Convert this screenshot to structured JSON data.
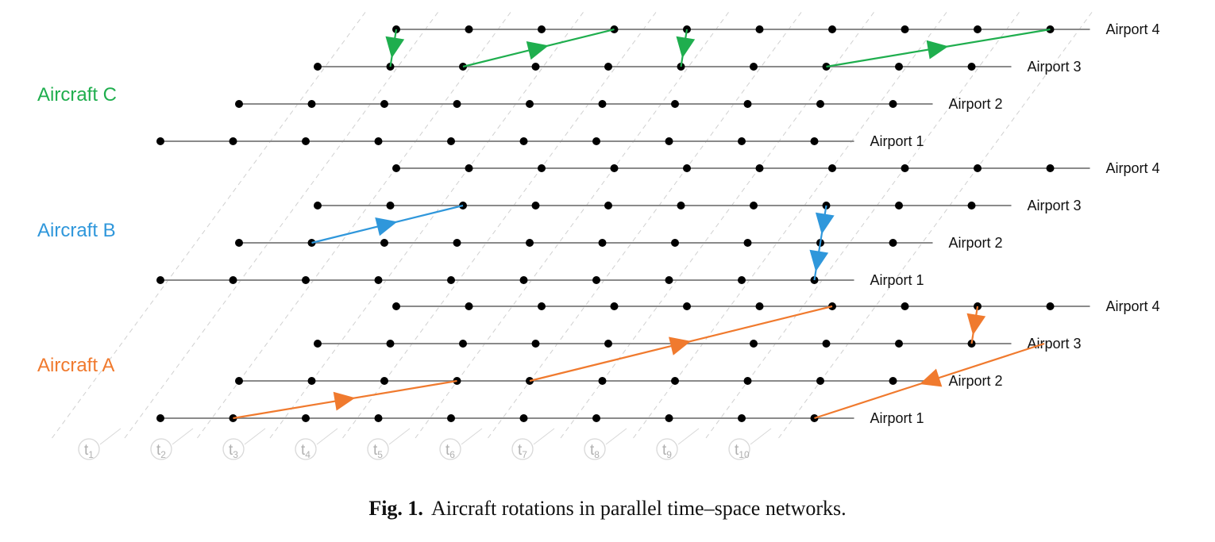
{
  "figure": {
    "caption_label": "Fig. 1.",
    "caption_text": "Aircraft rotations in parallel time–space networks."
  },
  "time_labels": [
    {
      "base": "t",
      "sub": "1"
    },
    {
      "base": "t",
      "sub": "2"
    },
    {
      "base": "t",
      "sub": "3"
    },
    {
      "base": "t",
      "sub": "4"
    },
    {
      "base": "t",
      "sub": "5"
    },
    {
      "base": "t",
      "sub": "6"
    },
    {
      "base": "t",
      "sub": "7"
    },
    {
      "base": "t",
      "sub": "8"
    },
    {
      "base": "t",
      "sub": "9"
    },
    {
      "base": "t",
      "sub": "10"
    }
  ],
  "airports": [
    "Airport 1",
    "Airport 2",
    "Airport 3",
    "Airport 4"
  ],
  "aircraft": [
    {
      "name": "Aircraft A",
      "color": "#F07A2E",
      "flights": [
        {
          "from_airport": 1,
          "from_time": 1,
          "to_airport": 2,
          "to_time": 3
        },
        {
          "from_airport": 2,
          "from_time": 4,
          "to_airport": 4,
          "to_time": 6
        },
        {
          "from_airport": 4,
          "from_time": 8,
          "to_airport": 3,
          "to_time": 9
        },
        {
          "from_airport": 3,
          "from_time": 10,
          "to_airport": 1,
          "to_time": 9
        }
      ]
    },
    {
      "name": "Aircraft B",
      "color": "#2F97DB",
      "flights": [
        {
          "from_airport": 2,
          "from_time": 1,
          "to_airport": 3,
          "to_time": 2
        },
        {
          "from_airport": 3,
          "from_time": 7,
          "to_airport": 2,
          "to_time": 8
        },
        {
          "from_airport": 2,
          "from_time": 8,
          "to_airport": 1,
          "to_time": 9
        }
      ]
    },
    {
      "name": "Aircraft C",
      "color": "#1FAE4E",
      "flights": [
        {
          "from_airport": 4,
          "from_time": 0,
          "to_airport": 3,
          "to_time": 1
        },
        {
          "from_airport": 3,
          "from_time": 2,
          "to_airport": 4,
          "to_time": 3
        },
        {
          "from_airport": 4,
          "from_time": 4,
          "to_airport": 3,
          "to_time": 5
        },
        {
          "from_airport": 3,
          "from_time": 7,
          "to_airport": 4,
          "to_time": 9
        }
      ]
    }
  ]
}
